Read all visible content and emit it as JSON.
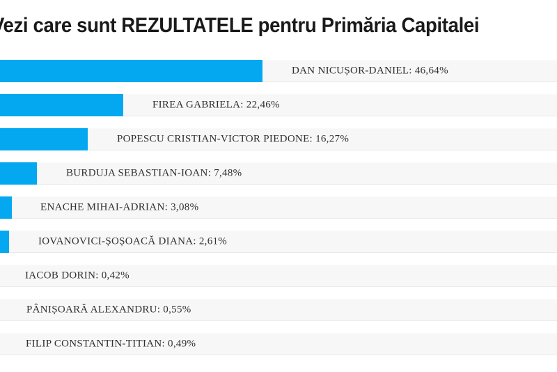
{
  "title": "Vezi care sunt REZULTATELE pentru Primăria Capitalei",
  "colors": {
    "bar": "#04a8f0",
    "track": "#f7f7f7",
    "track_border": "#e9e9e9",
    "title_text": "#1a1a1a",
    "label_text": "#303030",
    "background": "#ffffff"
  },
  "chart_data": {
    "type": "bar",
    "orientation": "horizontal",
    "title": "Vezi care sunt REZULTATELE pentru Primăria Capitalei",
    "categories": [
      "DAN NICUȘOR-DANIEL",
      "FIREA GABRIELA",
      "POPESCU CRISTIAN-VICTOR PIEDONE",
      "BURDUJA SEBASTIAN-IOAN",
      "ENACHE MIHAI-ADRIAN",
      "IOVANOVICI-ȘOȘOACĂ DIANA",
      "IACOB DORIN",
      "PÂNIȘOARĂ ALEXANDRU",
      "FILIP CONSTANTIN-TITIAN"
    ],
    "values": [
      46.64,
      22.46,
      16.27,
      7.48,
      3.08,
      2.61,
      0.42,
      0.55,
      0.49
    ],
    "labels": [
      "DAN NICUȘOR-DANIEL: 46,64%",
      "FIREA GABRIELA: 22,46%",
      "POPESCU CRISTIAN-VICTOR PIEDONE: 16,27%",
      "BURDUJA SEBASTIAN-IOAN: 7,48%",
      "ENACHE MIHAI-ADRIAN: 3,08%",
      "IOVANOVICI-ȘOȘOACĂ DIANA: 2,61%",
      "IACOB DORIN: 0,42%",
      "PÂNIȘOARĂ ALEXANDRU: 0,55%",
      "FILIP CONSTANTIN-TITIAN: 0,49%"
    ],
    "value_suffix": "%",
    "decimal_separator": ",",
    "legend": "none",
    "grid": "off",
    "xlim": [
      0,
      50
    ],
    "notes": "left edge of chart (bar starts and first letter of title) cropped out of frame"
  }
}
